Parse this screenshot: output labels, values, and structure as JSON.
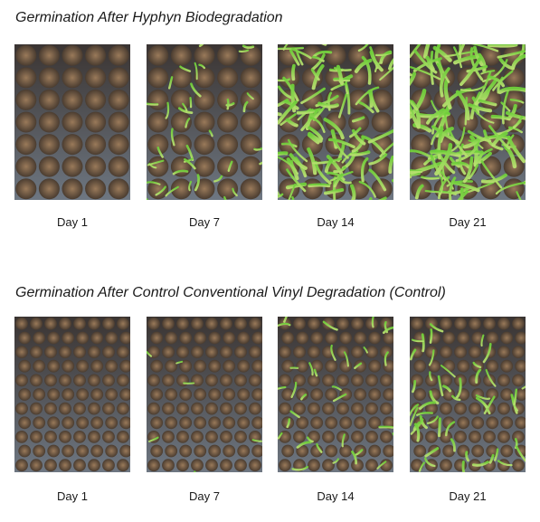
{
  "sections": [
    {
      "title": "Germination After Hyphyn Biodegradation",
      "panels": [
        {
          "label": "Day 1",
          "growth": 0.0
        },
        {
          "label": "Day 7",
          "growth": 0.3
        },
        {
          "label": "Day 14",
          "growth": 0.85
        },
        {
          "label": "Day 21",
          "growth": 1.0
        }
      ]
    },
    {
      "title": "Germination After Control Conventional Vinyl Degradation (Control)",
      "panels": [
        {
          "label": "Day 1",
          "growth": 0.0
        },
        {
          "label": "Day 7",
          "growth": 0.05
        },
        {
          "label": "Day 14",
          "growth": 0.3
        },
        {
          "label": "Day 21",
          "growth": 0.45
        }
      ]
    }
  ],
  "colors": {
    "soil_top": "#9a7a5a",
    "soil_bottom": "#4a3c30",
    "tray_top": "#3a3432",
    "tray_bottom": "#6e7782",
    "sprout_top": "#6fcf3a",
    "sprout_bottom": "#b8e070"
  }
}
